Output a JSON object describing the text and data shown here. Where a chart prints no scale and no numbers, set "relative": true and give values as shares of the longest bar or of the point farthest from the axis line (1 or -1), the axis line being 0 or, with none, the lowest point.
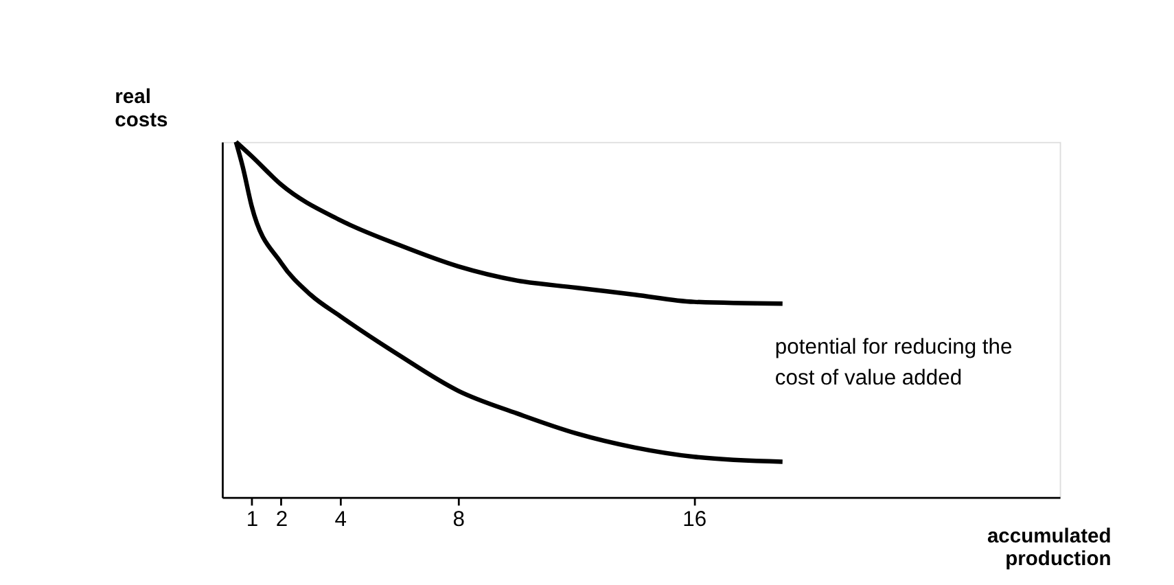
{
  "chart_data": {
    "type": "line",
    "relative": true,
    "xlabel": "accumulated production",
    "ylabel": "real costs",
    "annotations": [
      "potential for reducing the cost of value added"
    ],
    "xlim": [
      0,
      28.4
    ],
    "xticks": [
      1,
      2,
      4,
      8,
      16
    ],
    "grid": false,
    "marker": "none",
    "line_style": "solid",
    "series": [
      {
        "color": "#000000",
        "x": [
          0.47,
          1,
          2,
          4,
          6,
          8,
          10,
          12,
          14,
          16,
          19
        ],
        "values": [
          1.0,
          0.96,
          0.88,
          0.78,
          0.71,
          0.65,
          0.61,
          0.59,
          0.57,
          0.55,
          0.545
        ]
      },
      {
        "color": "#000000",
        "x": [
          0.47,
          0.7,
          1,
          2,
          3,
          4,
          6,
          8,
          10,
          12,
          14,
          16,
          19
        ],
        "values": [
          1.0,
          0.93,
          0.82,
          0.66,
          0.57,
          0.51,
          0.4,
          0.3,
          0.236,
          0.18,
          0.14,
          0.114,
          0.1
        ]
      }
    ]
  }
}
